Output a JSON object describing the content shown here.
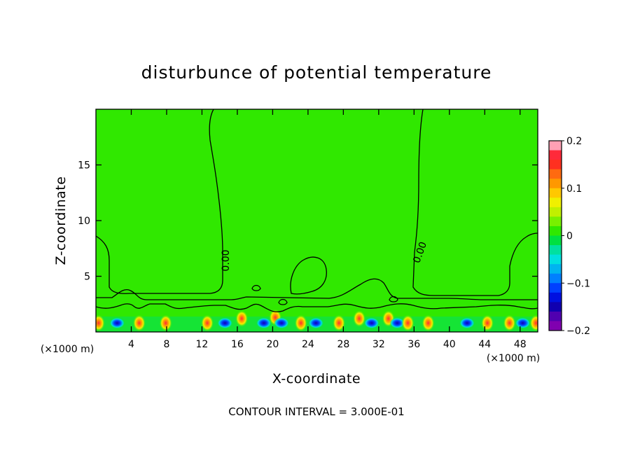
{
  "chart_data": {
    "type": "contour",
    "title": "disturbunce of potential temperature",
    "xlabel": "X-coordinate",
    "ylabel": "Z-coordinate",
    "x_unit": "(×1000 m)",
    "y_unit": "(×1000 m)",
    "xlim": [
      0,
      50
    ],
    "ylim": [
      0,
      20
    ],
    "x_ticks": [
      4,
      8,
      12,
      16,
      20,
      24,
      28,
      32,
      36,
      40,
      44,
      48
    ],
    "y_ticks": [
      5,
      10,
      15
    ],
    "contour_label": "0.00",
    "colorbar": {
      "ticks": [
        "0.2",
        "0.1",
        "0",
        "−0.1",
        "−0.2"
      ],
      "range": [
        -0.2,
        0.2
      ],
      "colors": [
        "#ffa0b4",
        "#ff2a3a",
        "#ff3020",
        "#ff6a10",
        "#ff9800",
        "#ffc800",
        "#f0f000",
        "#c0f000",
        "#78f000",
        "#30e800",
        "#00e040",
        "#00e0a0",
        "#00e0e0",
        "#00b4f0",
        "#0080ff",
        "#0040ff",
        "#0010e0",
        "#1000b0",
        "#5000b0",
        "#8000b0"
      ]
    },
    "footer": "CONTOUR INTERVAL = 3.000E-01",
    "background_value": 0.0,
    "anomalies": [
      {
        "x": 0.3,
        "z": 0.8,
        "sign": 1
      },
      {
        "x": 2.4,
        "z": 0.8,
        "sign": -1
      },
      {
        "x": 4.9,
        "z": 0.8,
        "sign": 1
      },
      {
        "x": 7.9,
        "z": 0.8,
        "sign": 1
      },
      {
        "x": 12.6,
        "z": 0.8,
        "sign": 1
      },
      {
        "x": 14.6,
        "z": 0.8,
        "sign": -1
      },
      {
        "x": 16.5,
        "z": 1.2,
        "sign": 1
      },
      {
        "x": 19.0,
        "z": 0.8,
        "sign": -1
      },
      {
        "x": 20.3,
        "z": 1.3,
        "sign": 1
      },
      {
        "x": 21.0,
        "z": 0.8,
        "sign": -1
      },
      {
        "x": 23.2,
        "z": 0.8,
        "sign": 1
      },
      {
        "x": 24.9,
        "z": 0.8,
        "sign": -1
      },
      {
        "x": 27.5,
        "z": 0.8,
        "sign": 1
      },
      {
        "x": 29.8,
        "z": 1.2,
        "sign": 1
      },
      {
        "x": 31.2,
        "z": 0.8,
        "sign": -1
      },
      {
        "x": 33.1,
        "z": 1.2,
        "sign": 1
      },
      {
        "x": 34.1,
        "z": 0.8,
        "sign": -1
      },
      {
        "x": 35.3,
        "z": 0.8,
        "sign": 1
      },
      {
        "x": 37.6,
        "z": 0.8,
        "sign": 1
      },
      {
        "x": 42.0,
        "z": 0.8,
        "sign": -1
      },
      {
        "x": 44.3,
        "z": 0.8,
        "sign": 1
      },
      {
        "x": 46.8,
        "z": 0.8,
        "sign": 1
      },
      {
        "x": 48.3,
        "z": 0.8,
        "sign": -1
      },
      {
        "x": 49.8,
        "z": 0.8,
        "sign": 1
      }
    ]
  }
}
